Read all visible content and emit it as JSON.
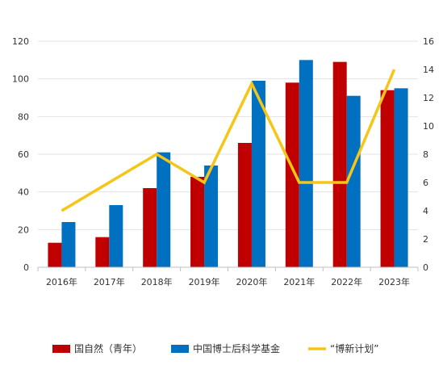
{
  "chart_data": {
    "type": "bar",
    "categories": [
      "2016年",
      "2017年",
      "2018年",
      "2019年",
      "2020年",
      "2021年",
      "2022年",
      "2023年"
    ],
    "series": [
      {
        "name": "国自然（青年）",
        "type": "bar",
        "axis": "left",
        "color": "#C00000",
        "values": [
          13,
          16,
          42,
          48,
          66,
          98,
          109,
          94
        ]
      },
      {
        "name": "中国博士后科学基金",
        "type": "bar",
        "axis": "left",
        "color": "#0070C0",
        "values": [
          24,
          33,
          61,
          54,
          99,
          110,
          91,
          95
        ]
      },
      {
        "name": "“博新计划”",
        "type": "line",
        "axis": "right",
        "color": "#F5C518",
        "values": [
          4,
          6,
          8,
          6,
          13,
          6,
          6,
          14
        ]
      }
    ],
    "y_left": {
      "min": 0,
      "max": 120,
      "ticks": [
        "0",
        "20",
        "40",
        "60",
        "80",
        "100",
        "120"
      ]
    },
    "y_right": {
      "min": 0,
      "max": 16,
      "ticks": [
        "0",
        "2",
        "4",
        "6",
        "8",
        "10",
        "12",
        "14",
        "16"
      ]
    },
    "title": "",
    "xlabel": "",
    "ylabel": "",
    "grid": true,
    "legend_position": "bottom"
  }
}
